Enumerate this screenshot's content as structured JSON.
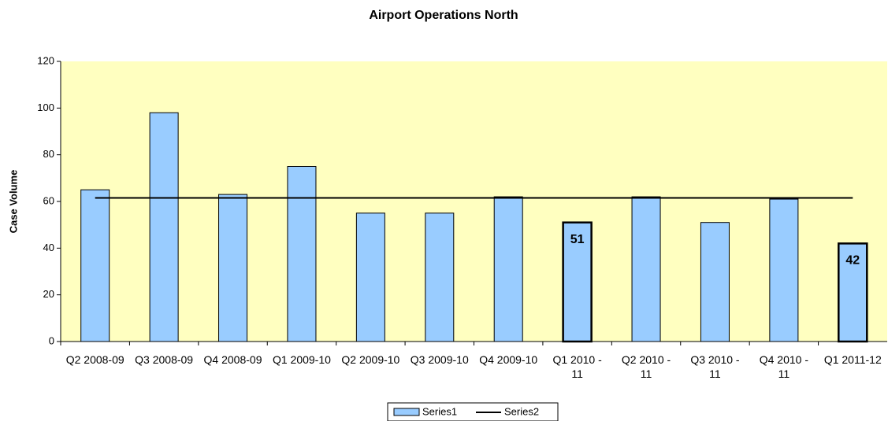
{
  "chart_data": {
    "type": "bar",
    "title": "Airport Operations North",
    "y_label": "Case Volume",
    "categories": [
      "Q2 2008-09",
      "Q3 2008-09",
      "Q4 2008-09",
      "Q1 2009-10",
      "Q2 2009-10",
      "Q3 2009-10",
      "Q4 2009-10",
      "Q1 2010 - 11",
      "Q2 2010 - 11",
      "Q3 2010 - 11",
      "Q4 2010 - 11",
      "Q1 2011-12"
    ],
    "series": [
      {
        "name": "Series1",
        "type": "bar",
        "color": "#99ccff",
        "values": [
          65,
          98,
          63,
          75,
          55,
          55,
          62,
          51,
          62,
          51,
          61,
          42
        ]
      },
      {
        "name": "Series2",
        "type": "line",
        "color": "#000000",
        "values": [
          61.5,
          61.5,
          61.5,
          61.5,
          61.5,
          61.5,
          61.5,
          61.5,
          61.5,
          61.5,
          61.5,
          61.5
        ]
      }
    ],
    "labeled_indices": [
      7,
      11
    ],
    "ylim": [
      0,
      120
    ],
    "yticks": [
      0,
      20,
      40,
      60,
      80,
      100,
      120
    ],
    "plot_background": "#ffffc0",
    "legend": "bottom"
  }
}
